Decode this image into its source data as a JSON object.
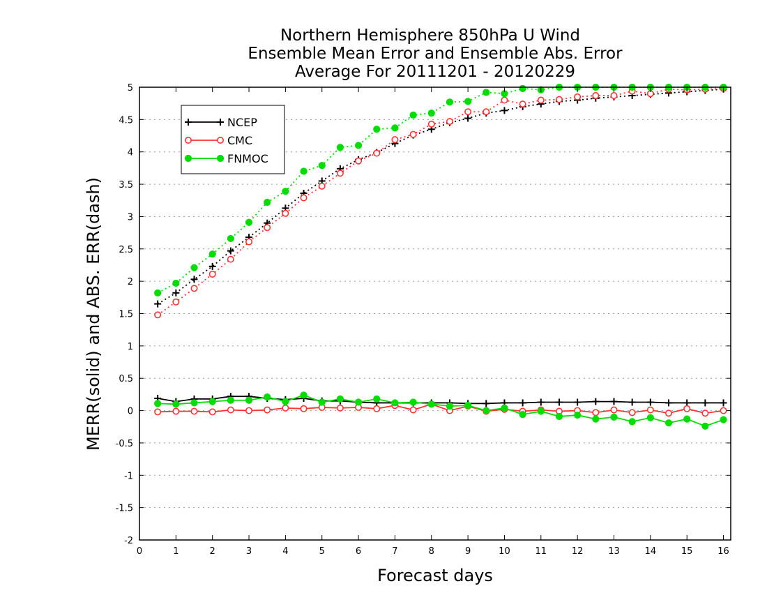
{
  "chart_data": {
    "type": "line",
    "title": [
      "Northern Hemisphere 850hPa U Wind",
      "Ensemble Mean Error and Ensemble Abs. Error",
      "Average For 20111201 - 20120229"
    ],
    "xlabel": "Forecast days",
    "ylabel": "MERR(solid) and ABS. ERR(dash)",
    "xlim": [
      0,
      16.2
    ],
    "ylim": [
      -2,
      5
    ],
    "xticks": [
      "0",
      "1",
      "2",
      "3",
      "4",
      "5",
      "6",
      "7",
      "8",
      "9",
      "10",
      "11",
      "12",
      "13",
      "14",
      "15",
      "16"
    ],
    "yticks": [
      "-2",
      "-1.5",
      "-1",
      "-0.5",
      "0",
      "0.5",
      "1",
      "1.5",
      "2",
      "2.5",
      "3",
      "3.5",
      "4",
      "4.5",
      "5"
    ],
    "grid": "horizontal dotted",
    "legend_position": "top-left",
    "x": [
      0.5,
      1,
      1.5,
      2,
      2.5,
      3,
      3.5,
      4,
      4.5,
      5,
      5.5,
      6,
      6.5,
      7,
      7.5,
      8,
      8.5,
      9,
      9.5,
      10,
      10.5,
      11,
      11.5,
      12,
      12.5,
      13,
      13.5,
      14,
      14.5,
      15,
      15.5,
      16
    ],
    "series": [
      {
        "name": "NCEP",
        "color": "#000000",
        "marker": "plus",
        "abs_err": [
          1.65,
          1.82,
          2.03,
          2.23,
          2.47,
          2.68,
          2.9,
          3.13,
          3.36,
          3.55,
          3.74,
          3.88,
          3.99,
          4.13,
          4.26,
          4.35,
          4.45,
          4.52,
          4.6,
          4.64,
          4.7,
          4.74,
          4.78,
          4.8,
          4.83,
          4.85,
          4.87,
          4.89,
          4.91,
          4.93,
          4.95,
          4.97
        ],
        "mean_err": [
          0.19,
          0.14,
          0.18,
          0.18,
          0.22,
          0.22,
          0.19,
          0.17,
          0.19,
          0.15,
          0.15,
          0.13,
          0.12,
          0.12,
          0.12,
          0.12,
          0.12,
          0.11,
          0.11,
          0.12,
          0.12,
          0.13,
          0.13,
          0.13,
          0.14,
          0.14,
          0.13,
          0.13,
          0.12,
          0.12,
          0.12,
          0.12
        ]
      },
      {
        "name": "CMC",
        "color": "#ff3333",
        "marker": "open-circle",
        "abs_err": [
          1.48,
          1.68,
          1.89,
          2.11,
          2.34,
          2.61,
          2.83,
          3.05,
          3.29,
          3.47,
          3.67,
          3.86,
          3.98,
          4.19,
          4.27,
          4.43,
          4.47,
          4.62,
          4.62,
          4.8,
          4.74,
          4.8,
          4.81,
          4.85,
          4.87,
          4.87,
          4.94,
          4.9,
          4.97,
          4.96,
          4.97,
          4.98
        ],
        "mean_err": [
          -0.02,
          -0.01,
          -0.01,
          -0.02,
          0.01,
          0.0,
          0.01,
          0.04,
          0.03,
          0.05,
          0.04,
          0.05,
          0.03,
          0.08,
          0.01,
          0.1,
          0.0,
          0.07,
          -0.01,
          0.02,
          -0.01,
          0.01,
          -0.01,
          0.0,
          -0.03,
          0.01,
          -0.03,
          0.01,
          -0.04,
          0.03,
          -0.04,
          0.0
        ]
      },
      {
        "name": "FNMOC",
        "color": "#00dd00",
        "marker": "filled-circle",
        "abs_err": [
          1.82,
          1.97,
          2.21,
          2.42,
          2.66,
          2.91,
          3.22,
          3.39,
          3.7,
          3.79,
          4.07,
          4.1,
          4.35,
          4.37,
          4.57,
          4.6,
          4.77,
          4.78,
          4.92,
          4.9,
          4.98,
          4.96,
          5.0,
          5.0,
          5.0,
          5.0,
          5.0,
          5.0,
          5.0,
          5.0,
          5.0,
          5.0
        ],
        "mean_err": [
          0.11,
          0.1,
          0.12,
          0.14,
          0.16,
          0.16,
          0.21,
          0.14,
          0.24,
          0.13,
          0.18,
          0.13,
          0.18,
          0.12,
          0.13,
          0.1,
          0.07,
          0.08,
          0.0,
          0.04,
          -0.06,
          -0.01,
          -0.09,
          -0.07,
          -0.13,
          -0.1,
          -0.17,
          -0.11,
          -0.19,
          -0.13,
          -0.24,
          -0.14
        ]
      }
    ]
  }
}
